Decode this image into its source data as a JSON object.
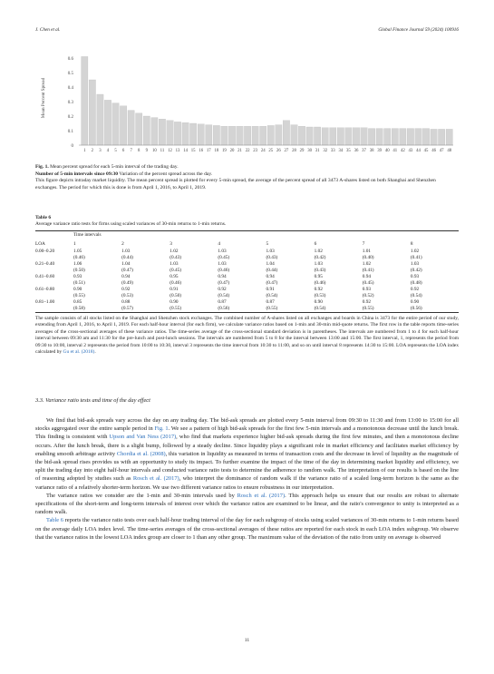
{
  "header": {
    "left": "J. Chen et al.",
    "right": "Global Finance Journal 59 (2024) 100916"
  },
  "chart_data": {
    "type": "bar",
    "ylabel": "Mean Percent Spread",
    "yticks": [
      "0",
      "0.1",
      "0.2",
      "0.3",
      "0.4",
      "0.5",
      "0.6"
    ],
    "ylim": [
      0,
      0.65
    ],
    "grid": false,
    "categories": [
      "1",
      "2",
      "3",
      "4",
      "5",
      "6",
      "7",
      "8",
      "9",
      "10",
      "11",
      "12",
      "13",
      "14",
      "15",
      "16",
      "17",
      "18",
      "19",
      "20",
      "21",
      "22",
      "23",
      "24",
      "25",
      "26",
      "27",
      "28",
      "29",
      "30",
      "31",
      "32",
      "33",
      "34",
      "35",
      "36",
      "37",
      "38",
      "39",
      "40",
      "41",
      "42",
      "43",
      "44",
      "45",
      "46",
      "47",
      "48"
    ],
    "values": [
      0.61,
      0.45,
      0.35,
      0.31,
      0.29,
      0.27,
      0.24,
      0.22,
      0.2,
      0.19,
      0.18,
      0.17,
      0.16,
      0.155,
      0.15,
      0.145,
      0.14,
      0.135,
      0.13,
      0.13,
      0.13,
      0.13,
      0.13,
      0.13,
      0.135,
      0.14,
      0.17,
      0.14,
      0.13,
      0.125,
      0.125,
      0.12,
      0.12,
      0.12,
      0.12,
      0.12,
      0.12,
      0.115,
      0.115,
      0.115,
      0.115,
      0.115,
      0.115,
      0.115,
      0.115,
      0.11,
      0.11,
      0.11
    ]
  },
  "figure": {
    "label": "Fig. 1.",
    "title": "Mean percent spread for each 5-min interval of the trading day.",
    "subtitle_bold": "Number of 5-min intervals since 09:30",
    "subtitle_rest": " Variation of the percent spread across the day.",
    "note": "This figure depicts intraday market liquidity. The mean percent spread is plotted for every 5-min spread, the average of the percent spread of all 3473 A-shares listed on both Shanghai and Shenzhen exchanges. The period for which this is done is from April 1, 2016, to April 1, 2019."
  },
  "table": {
    "label": "Table 6",
    "caption": "Average variance ratio tests for firms using scaled variances of 30-min returns to 1-min returns.",
    "group_header": "Time intervals",
    "loa_header": "LOA",
    "columns": [
      "1",
      "2",
      "3",
      "4",
      "5",
      "6",
      "7",
      "8"
    ],
    "rows": [
      {
        "loa": "0.00–0.20",
        "values": [
          "1.05",
          "1.03",
          "1.02",
          "1.03",
          "1.03",
          "1.02",
          "1.01",
          "1.02"
        ],
        "sds": [
          "(0.46)",
          "(0.44)",
          "(0.43)",
          "(0.45)",
          "(0.43)",
          "(0.42)",
          "(0.40)",
          "(0.41)"
        ]
      },
      {
        "loa": "0.21–0.40",
        "values": [
          "1.06",
          "1.04",
          "1.03",
          "1.03",
          "1.04",
          "1.03",
          "1.02",
          "1.03"
        ],
        "sds": [
          "(0.50)",
          "(0.47)",
          "(0.45)",
          "(0.46)",
          "(0.44)",
          "(0.43)",
          "(0.41)",
          "(0.42)"
        ]
      },
      {
        "loa": "0.41–0.60",
        "values": [
          "0.93",
          "0.94",
          "0.95",
          "0.94",
          "0.94",
          "0.95",
          "0.94",
          "0.93"
        ],
        "sds": [
          "(0.51)",
          "(0.49)",
          "(0.46)",
          "(0.47)",
          "(0.47)",
          "(0.46)",
          "(0.45)",
          "(0.48)"
        ]
      },
      {
        "loa": "0.61–0.80",
        "values": [
          "0.90",
          "0.92",
          "0.91",
          "0.92",
          "0.91",
          "0.92",
          "0.93",
          "0.92"
        ],
        "sds": [
          "(0.55)",
          "(0.53)",
          "(0.50)",
          "(0.54)",
          "(0.54)",
          "(0.53)",
          "(0.52)",
          "(0.54)"
        ]
      },
      {
        "loa": "0.81–1.00",
        "values": [
          "0.85",
          "0.88",
          "0.90",
          "0.87",
          "0.87",
          "0.90",
          "0.92",
          "0.90"
        ],
        "sds": [
          "(0.58)",
          "(0.57)",
          "(0.55)",
          "(0.56)",
          "(0.55)",
          "(0.54)",
          "(0.55)",
          "(0.56)"
        ]
      }
    ],
    "note_main": "The sample consists of all stocks listed on the Shanghai and Shenzhen stock exchanges. The combined number of A-shares listed on all exchanges and boards in China is 3473 for the entire period of our study, extending from April 1, 2016, to April 1, 2019. For each half-hour interval (for each firm), we calculate variance ratios based on 1-min and 30-min mid-quote returns. The first row in the table reports time-series averages of the cross-sectional averages of these variance ratios. The time-series average of the cross-sectional standard deviation is in parentheses. The intervals are numbered from 1 to 4 for each half-hour interval between 09:30 am and 11:30 for the pre-lunch and post-lunch sessions. The intervals are numbered from 5 to 8 for the interval between 13:00 and 15:00. The first interval, 1, represents the period from 09:30 to 10:00, interval 2 represents the period from 10:00 to 10:30, interval 3 represents the time interval from 10:30 to 11:00, and so on until interval 8 represents 14:30 to 15:00. LOA represents the LOA index calculated by ",
    "note_link": "Gu et al. (2018)",
    "note_end": "."
  },
  "section": {
    "title": "3.3.  Variance ratio tests and time of the day effect"
  },
  "body": {
    "p1_a": "We find that bid-ask spreads vary across the day on any trading day. The bid-ask spreads are plotted every 5-min interval from 09:30 to 11:30 and from 13:00 to 15:00 for all stocks aggregated over the entire sample period in ",
    "p1_link1": "Fig. 1",
    "p1_b": ". We see a pattern of high bid-ask spreads for the first few 5-min intervals and a monotonous decrease until the lunch break. This finding is consistent with ",
    "p1_link2": "Upson and Van Ness (2017)",
    "p1_c": ", who find that markets experience higher bid-ask spreads during the first few minutes, and then a monotonous decline occurs. After the lunch break, there is a slight bump, followed by a steady decline. Since liquidity plays a significant role in market efficiency and facilitates market efficiency by enabling smooth arbitrage activity ",
    "p1_link3": "Chordia et al. (2008)",
    "p1_d": ", this variation in liquidity as measured in terms of transaction costs and the decrease in level of liquidity as the magnitude of the bid-ask spread rises provides us with an opportunity to study its impact. To further examine the impact of the time of the day in determining market liquidity and efficiency, we split the trading day into eight half-hour intervals and conducted variance ratio tests to determine the adherence to random walk. The interpretation of our results is based on the line of reasoning adopted by studies such as ",
    "p1_link4": "Rosch et al. (2017)",
    "p1_e": ", who interpret the dominance of random walk if the variance ratio of a scaled long-term horizon is the same as the variance ratio of a relatively shorter-term horizon. We use two different variance ratios to ensure robustness in our interpretation.",
    "p2_a": "The variance ratios we consider are the 1-min and 30-min intervals used by ",
    "p2_link": "Rosch et al. (2017)",
    "p2_b": ". This approach helps us ensure that our results are robust to alternate specifications of the short-term and long-term intervals of interest over which the variance ratios are examined to be linear, and the ratio's convergence to unity is interpreted as a random walk.",
    "p3_link": "Table 6",
    "p3_a": " reports the variance ratio tests over each half-hour trading interval of the day for each subgroup of stocks using scaled variances of 30-min returns to 1-min returns based on the average daily LOA index level. The time-series averages of the cross-sectional averages of these ratios are reported for each stock in each LOA index subgroup. We observe that the variance ratios in the lowest LOA index group are closer to 1 than any other group. The maximum value of the deviation of the ratio from unity on average is observed"
  },
  "page_number": "11"
}
